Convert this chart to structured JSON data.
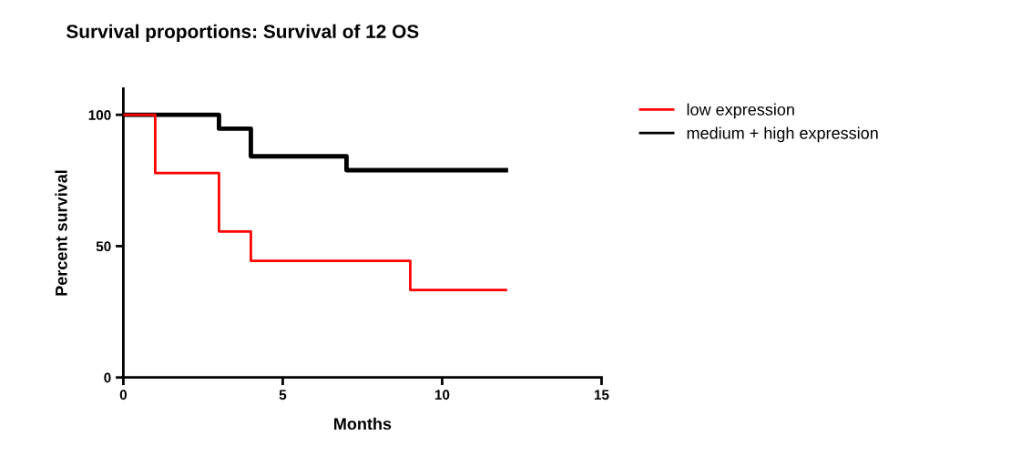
{
  "chart_data": {
    "type": "step",
    "title": "Survival proportions: Survival of 12 OS",
    "xlabel": "Months",
    "ylabel": "Percent survival",
    "series": [
      {
        "name": "low expression",
        "color": "#ff0000",
        "x": [
          0,
          1,
          3,
          4,
          9,
          12
        ],
        "values": [
          100,
          77.8,
          55.6,
          44.4,
          33.3,
          33.3
        ]
      },
      {
        "name": "medium + high expression",
        "color": "#000000",
        "x": [
          0,
          3,
          4,
          7,
          12
        ],
        "values": [
          100,
          94.7,
          84.2,
          78.9,
          78.9
        ]
      }
    ],
    "xlim": [
      0,
      15
    ],
    "xticks": [
      0,
      5,
      10,
      15
    ],
    "ylim": [
      0,
      110
    ],
    "yticks": [
      0,
      50,
      100
    ],
    "grid": false,
    "legend": "top right",
    "line_style": "solid"
  }
}
